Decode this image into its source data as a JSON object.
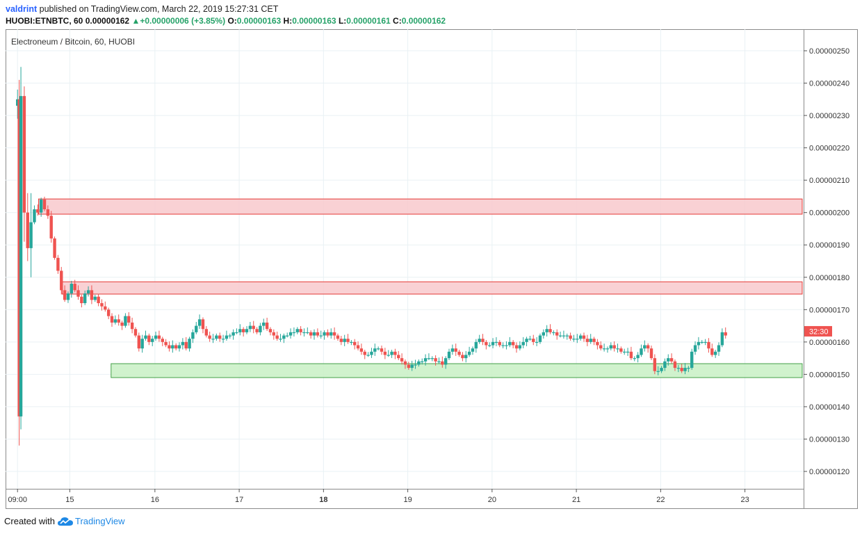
{
  "header": {
    "user": "valdrint",
    "published": "published on TradingView.com, March 22, 2019 15:27:31 CET",
    "symbol": "HUOBI:ETNBTC, 60",
    "last": "0.00000162",
    "change_arrow": "▲",
    "change": "+0.00000006 (+3.85%)",
    "o_label": "O:",
    "o_value": "0.00000163",
    "h_label": "H:",
    "h_value": "0.00000163",
    "l_label": "L:",
    "l_value": "0.00000161",
    "c_label": "C:",
    "c_value": "0.00000162"
  },
  "footer": {
    "created_with": "Created with",
    "brand": "TradingView"
  },
  "colors": {
    "up": "#26a69a",
    "down": "#ef5350",
    "resistance_fill": "#f8c9cc",
    "resistance_stroke": "#e53935",
    "support_fill": "#c8f0c4",
    "support_stroke": "#43a047",
    "grid": "#e9f1f4",
    "axis": "#555555"
  },
  "chart_data": {
    "type": "candlestick",
    "title": "Electroneum / Bitcoin, 60, HUOBI",
    "price_tag": "32:30",
    "ylim": [
      1.15e-06,
      2.55e-06
    ],
    "y_ticks": [
      "0.00000250",
      "0.00000240",
      "0.00000230",
      "0.00000220",
      "0.00000210",
      "0.00000200",
      "0.00000190",
      "0.00000180",
      "0.00000170",
      "0.00000160",
      "0.00000150",
      "0.00000140",
      "0.00000130",
      "0.00000120"
    ],
    "y_tick_values": [
      250,
      240,
      230,
      220,
      210,
      200,
      190,
      180,
      170,
      160,
      150,
      140,
      130,
      120
    ],
    "x_ticks": [
      {
        "label": "09:00",
        "t": 0.05,
        "bold": false
      },
      {
        "label": "15",
        "t": 3.15,
        "bold": false
      },
      {
        "label": "16",
        "t": 8.2,
        "bold": false
      },
      {
        "label": "17",
        "t": 13.2,
        "bold": false
      },
      {
        "label": "18",
        "t": 18.2,
        "bold": true
      },
      {
        "label": "19",
        "t": 23.2,
        "bold": false
      },
      {
        "label": "20",
        "t": 28.2,
        "bold": false
      },
      {
        "label": "21",
        "t": 33.2,
        "bold": false
      },
      {
        "label": "22",
        "t": 38.2,
        "bold": false
      },
      {
        "label": "23",
        "t": 43.2,
        "bold": false
      }
    ],
    "zones": [
      {
        "name": "resistance-zone-upper",
        "kind": "resistance",
        "t_start": 1.3,
        "low": 199.5,
        "high": 204.2
      },
      {
        "name": "resistance-zone-lower",
        "kind": "resistance",
        "t_start": 2.7,
        "low": 174.8,
        "high": 178.6
      },
      {
        "name": "support-zone",
        "kind": "support",
        "t_start": 5.6,
        "low": 149.0,
        "high": 153.3
      }
    ],
    "x_units_note": "t = hours since first bar / 4.8",
    "candles_scale": "price in 1e-8 BTC",
    "path_points": [
      [
        0.05,
        235
      ],
      [
        0.15,
        137
      ],
      [
        0.25,
        236
      ],
      [
        0.45,
        200
      ],
      [
        0.65,
        189
      ],
      [
        0.85,
        197
      ],
      [
        1.05,
        201
      ],
      [
        1.25,
        200
      ],
      [
        1.45,
        204
      ],
      [
        1.65,
        201
      ],
      [
        1.85,
        199
      ],
      [
        2.05,
        192
      ],
      [
        2.25,
        186
      ],
      [
        2.45,
        182
      ],
      [
        2.65,
        176
      ],
      [
        2.85,
        173
      ],
      [
        3.05,
        175
      ],
      [
        3.25,
        178
      ],
      [
        3.45,
        176
      ],
      [
        3.65,
        174
      ],
      [
        3.85,
        172
      ],
      [
        4.05,
        175
      ],
      [
        4.25,
        176
      ],
      [
        4.45,
        173
      ],
      [
        4.65,
        174
      ],
      [
        4.85,
        172
      ],
      [
        5.05,
        171
      ],
      [
        5.25,
        170
      ],
      [
        5.45,
        168
      ],
      [
        5.65,
        166
      ],
      [
        5.85,
        167
      ],
      [
        6.05,
        166
      ],
      [
        6.25,
        165
      ],
      [
        6.45,
        168
      ],
      [
        6.65,
        166
      ],
      [
        6.85,
        164
      ],
      [
        7.05,
        162
      ],
      [
        7.25,
        158
      ],
      [
        7.45,
        161
      ],
      [
        7.65,
        162
      ],
      [
        7.85,
        160
      ],
      [
        8.05,
        161
      ],
      [
        8.25,
        162
      ],
      [
        8.45,
        161
      ],
      [
        8.65,
        160
      ],
      [
        8.85,
        159
      ],
      [
        9.05,
        158
      ],
      [
        9.25,
        159
      ],
      [
        9.45,
        158
      ],
      [
        9.65,
        159
      ],
      [
        9.85,
        160
      ],
      [
        10.05,
        158
      ],
      [
        10.25,
        161
      ],
      [
        10.45,
        163
      ],
      [
        10.65,
        165
      ],
      [
        10.85,
        167
      ],
      [
        11.05,
        164
      ],
      [
        11.25,
        162
      ],
      [
        11.45,
        161
      ],
      [
        11.65,
        161
      ],
      [
        11.85,
        162
      ],
      [
        12.05,
        161
      ],
      [
        12.25,
        161
      ],
      [
        12.45,
        162
      ],
      [
        12.65,
        162
      ],
      [
        12.85,
        163
      ],
      [
        13.05,
        163
      ],
      [
        13.25,
        164
      ],
      [
        13.45,
        163
      ],
      [
        13.65,
        164
      ],
      [
        13.85,
        165
      ],
      [
        14.05,
        164
      ],
      [
        14.25,
        163
      ],
      [
        14.45,
        165
      ],
      [
        14.65,
        166
      ],
      [
        14.85,
        164
      ],
      [
        15.05,
        163
      ],
      [
        15.25,
        162
      ],
      [
        15.45,
        161
      ],
      [
        15.65,
        161
      ],
      [
        15.85,
        162
      ],
      [
        16.05,
        162
      ],
      [
        16.25,
        163
      ],
      [
        16.45,
        163
      ],
      [
        16.65,
        164
      ],
      [
        16.85,
        163
      ],
      [
        17.05,
        163
      ],
      [
        17.25,
        163
      ],
      [
        17.45,
        162
      ],
      [
        17.65,
        163
      ],
      [
        17.85,
        162
      ],
      [
        18.05,
        162
      ],
      [
        18.25,
        163
      ],
      [
        18.45,
        162
      ],
      [
        18.65,
        163
      ],
      [
        18.85,
        162
      ],
      [
        19.05,
        161
      ],
      [
        19.25,
        160
      ],
      [
        19.45,
        161
      ],
      [
        19.65,
        160
      ],
      [
        19.85,
        160
      ],
      [
        20.05,
        159
      ],
      [
        20.25,
        158
      ],
      [
        20.45,
        157
      ],
      [
        20.65,
        156
      ],
      [
        20.85,
        156
      ],
      [
        21.05,
        157
      ],
      [
        21.25,
        158
      ],
      [
        21.45,
        158
      ],
      [
        21.65,
        157
      ],
      [
        21.85,
        156
      ],
      [
        22.05,
        156
      ],
      [
        22.25,
        157
      ],
      [
        22.45,
        156
      ],
      [
        22.65,
        155
      ],
      [
        22.85,
        154
      ],
      [
        23.05,
        153
      ],
      [
        23.25,
        152
      ],
      [
        23.45,
        153
      ],
      [
        23.65,
        153
      ],
      [
        23.85,
        154
      ],
      [
        24.05,
        154
      ],
      [
        24.25,
        155
      ],
      [
        24.45,
        155
      ],
      [
        24.65,
        155
      ],
      [
        24.85,
        154
      ],
      [
        25.05,
        154
      ],
      [
        25.25,
        153
      ],
      [
        25.45,
        155
      ],
      [
        25.65,
        157
      ],
      [
        25.85,
        158
      ],
      [
        26.05,
        157
      ],
      [
        26.25,
        156
      ],
      [
        26.45,
        155
      ],
      [
        26.65,
        156
      ],
      [
        26.85,
        157
      ],
      [
        27.05,
        158
      ],
      [
        27.25,
        160
      ],
      [
        27.45,
        161
      ],
      [
        27.65,
        160
      ],
      [
        27.85,
        159
      ],
      [
        28.05,
        159
      ],
      [
        28.25,
        160
      ],
      [
        28.45,
        160
      ],
      [
        28.65,
        159
      ],
      [
        28.85,
        159
      ],
      [
        29.05,
        159
      ],
      [
        29.25,
        160
      ],
      [
        29.45,
        159
      ],
      [
        29.65,
        158
      ],
      [
        29.85,
        159
      ],
      [
        30.05,
        160
      ],
      [
        30.25,
        161
      ],
      [
        30.45,
        161
      ],
      [
        30.65,
        160
      ],
      [
        30.85,
        160
      ],
      [
        31.05,
        162
      ],
      [
        31.25,
        163
      ],
      [
        31.45,
        164
      ],
      [
        31.65,
        163
      ],
      [
        31.85,
        163
      ],
      [
        32.05,
        162
      ],
      [
        32.25,
        162
      ],
      [
        32.45,
        162
      ],
      [
        32.65,
        162
      ],
      [
        32.85,
        161
      ],
      [
        33.05,
        161
      ],
      [
        33.25,
        161
      ],
      [
        33.45,
        162
      ],
      [
        33.65,
        161
      ],
      [
        33.85,
        160
      ],
      [
        34.05,
        161
      ],
      [
        34.25,
        160
      ],
      [
        34.45,
        159
      ],
      [
        34.65,
        158
      ],
      [
        34.85,
        158
      ],
      [
        35.05,
        158
      ],
      [
        35.25,
        159
      ],
      [
        35.45,
        158
      ],
      [
        35.65,
        158
      ],
      [
        35.85,
        157
      ],
      [
        36.05,
        157
      ],
      [
        36.25,
        157
      ],
      [
        36.45,
        155
      ],
      [
        36.65,
        155
      ],
      [
        36.85,
        156
      ],
      [
        37.05,
        158
      ],
      [
        37.25,
        159
      ],
      [
        37.45,
        158
      ],
      [
        37.65,
        155
      ],
      [
        37.85,
        151
      ],
      [
        38.05,
        151
      ],
      [
        38.25,
        152
      ],
      [
        38.45,
        154
      ],
      [
        38.65,
        155
      ],
      [
        38.85,
        154
      ],
      [
        39.05,
        152
      ],
      [
        39.25,
        152
      ],
      [
        39.45,
        151
      ],
      [
        39.65,
        152
      ],
      [
        39.85,
        152
      ],
      [
        40.05,
        157
      ],
      [
        40.25,
        159
      ],
      [
        40.45,
        160
      ],
      [
        40.65,
        160
      ],
      [
        40.85,
        160
      ],
      [
        41.05,
        158
      ],
      [
        41.25,
        156
      ],
      [
        41.45,
        157
      ],
      [
        41.65,
        159
      ],
      [
        41.85,
        163
      ],
      [
        42.05,
        162
      ]
    ]
  }
}
